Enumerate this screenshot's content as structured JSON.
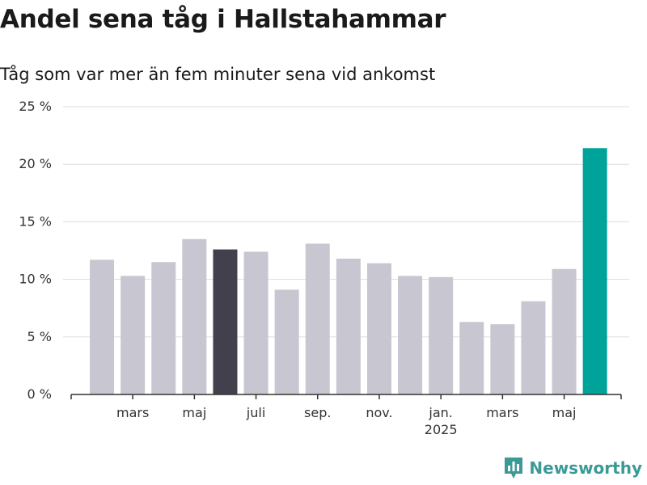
{
  "title": "Andel sena tåg i Hallstahammar",
  "subtitle": "Tåg som var mer än fem minuter sena vid ankomst",
  "brand": {
    "name": "Newsworthy",
    "color": "#3a9a96"
  },
  "colors": {
    "bar_default": "#c8c7d1",
    "bar_highlight": "#41404c",
    "bar_latest": "#00a39a",
    "grid": "#dddddd",
    "axis": "#333333"
  },
  "chart_data": {
    "type": "bar",
    "title": "Andel sena tåg i Hallstahammar",
    "subtitle": "Tåg som var mer än fem minuter sena vid ankomst",
    "xlabel": "",
    "ylabel": "",
    "ylim": [
      0,
      25
    ],
    "y_ticks": [
      {
        "value": 0,
        "label": "0 %"
      },
      {
        "value": 5,
        "label": "5 %"
      },
      {
        "value": 10,
        "label": "10 %"
      },
      {
        "value": 15,
        "label": "15 %"
      },
      {
        "value": 20,
        "label": "20 %"
      },
      {
        "value": 25,
        "label": "25 %"
      }
    ],
    "categories": [
      "2024-02",
      "2024-03",
      "2024-04",
      "2024-05",
      "2024-06",
      "2024-07",
      "2024-08",
      "2024-09",
      "2024-10",
      "2024-11",
      "2024-12",
      "2025-01",
      "2025-02",
      "2025-03",
      "2025-04",
      "2025-05",
      "2025-06"
    ],
    "values": [
      11.7,
      10.3,
      11.5,
      13.5,
      12.6,
      12.4,
      9.1,
      13.1,
      11.8,
      11.4,
      10.3,
      10.2,
      6.3,
      6.1,
      8.1,
      10.9,
      21.4
    ],
    "highlight": {
      "2024-06": "bar_highlight",
      "2025-06": "bar_latest"
    },
    "x_tick_labels": [
      {
        "category": "2024-03",
        "label": "mars",
        "sublabel": ""
      },
      {
        "category": "2024-05",
        "label": "maj",
        "sublabel": ""
      },
      {
        "category": "2024-07",
        "label": "juli",
        "sublabel": ""
      },
      {
        "category": "2024-09",
        "label": "sep.",
        "sublabel": ""
      },
      {
        "category": "2024-11",
        "label": "nov.",
        "sublabel": ""
      },
      {
        "category": "2025-01",
        "label": "jan.",
        "sublabel": "2025"
      },
      {
        "category": "2025-03",
        "label": "mars",
        "sublabel": ""
      },
      {
        "category": "2025-05",
        "label": "maj",
        "sublabel": ""
      }
    ],
    "grid": true,
    "legend": "none"
  }
}
